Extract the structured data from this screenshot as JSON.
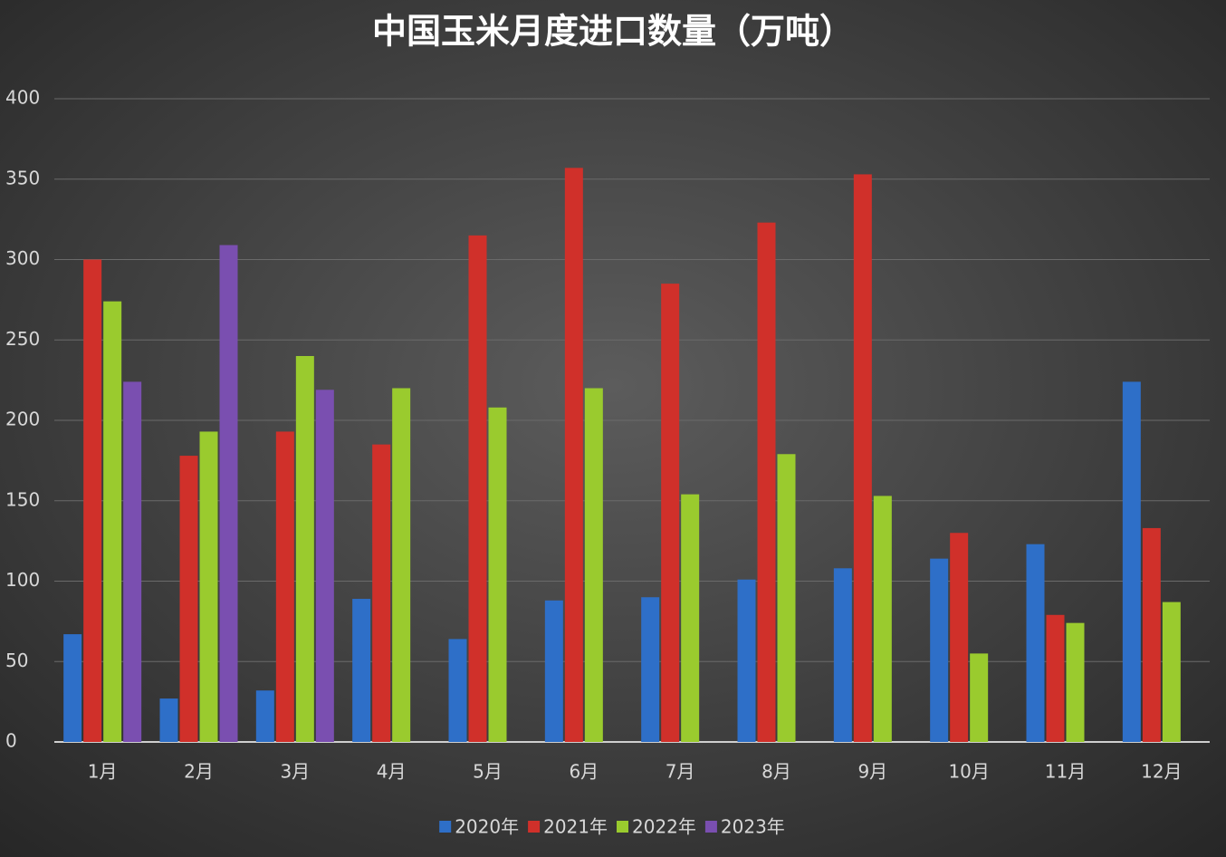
{
  "chart_data": {
    "type": "bar",
    "title": "中国玉米月度进口数量（万吨）",
    "categories": [
      "1月",
      "2月",
      "3月",
      "4月",
      "5月",
      "6月",
      "7月",
      "8月",
      "9月",
      "10月",
      "11月",
      "12月"
    ],
    "series": [
      {
        "name": "2020年",
        "color": "#2e6fc8",
        "values": [
          67,
          27,
          32,
          89,
          64,
          88,
          90,
          101,
          108,
          114,
          123,
          224
        ]
      },
      {
        "name": "2021年",
        "color": "#d0302a",
        "values": [
          300,
          178,
          193,
          185,
          315,
          357,
          285,
          323,
          353,
          130,
          79,
          133
        ]
      },
      {
        "name": "2022年",
        "color": "#9acb2e",
        "values": [
          274,
          193,
          240,
          220,
          208,
          220,
          154,
          179,
          153,
          55,
          74,
          87
        ]
      },
      {
        "name": "2023年",
        "color": "#7a4fb0",
        "values": [
          224,
          309,
          219,
          null,
          null,
          null,
          null,
          null,
          null,
          null,
          null,
          null
        ]
      }
    ],
    "ylim": [
      0,
      400
    ],
    "yticks": [
      0,
      50,
      100,
      150,
      200,
      250,
      300,
      350,
      400
    ],
    "grid": true,
    "legend": "bottom"
  }
}
